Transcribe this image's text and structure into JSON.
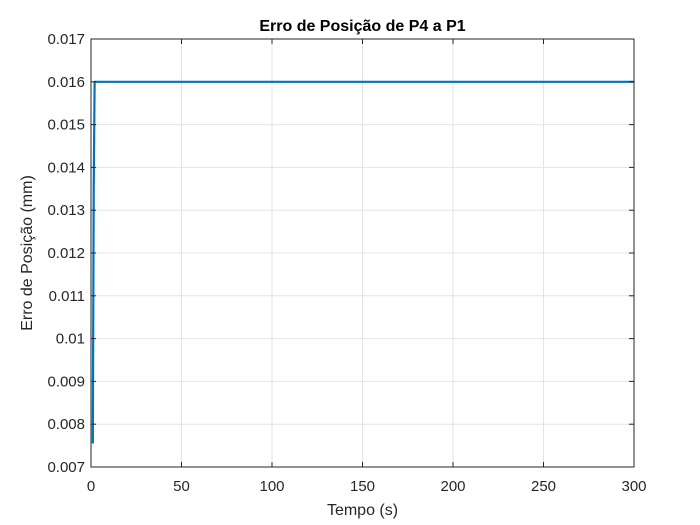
{
  "chart_data": {
    "type": "line",
    "title": "Erro de Posição de P4 a P1",
    "xlabel": "Tempo (s)",
    "ylabel": "Erro de Posição (mm)",
    "xlim": [
      0,
      300
    ],
    "ylim": [
      0.007,
      0.017
    ],
    "xticks": [
      0,
      50,
      100,
      150,
      200,
      250,
      300
    ],
    "xtick_labels": [
      "0",
      "50",
      "100",
      "150",
      "200",
      "250",
      "300"
    ],
    "yticks": [
      0.007,
      0.008,
      0.009,
      0.01,
      0.011,
      0.012,
      0.013,
      0.014,
      0.015,
      0.016,
      0.017
    ],
    "ytick_labels": [
      "0.007",
      "0.008",
      "0.009",
      "0.01",
      "0.011",
      "0.012",
      "0.013",
      "0.014",
      "0.015",
      "0.016",
      "0.017"
    ],
    "grid": true,
    "series": [
      {
        "color": "#0072BD",
        "x": [
          1,
          1.5,
          2,
          3,
          300
        ],
        "y": [
          0.00755,
          0.0135,
          0.016,
          0.016,
          0.016
        ]
      }
    ]
  }
}
